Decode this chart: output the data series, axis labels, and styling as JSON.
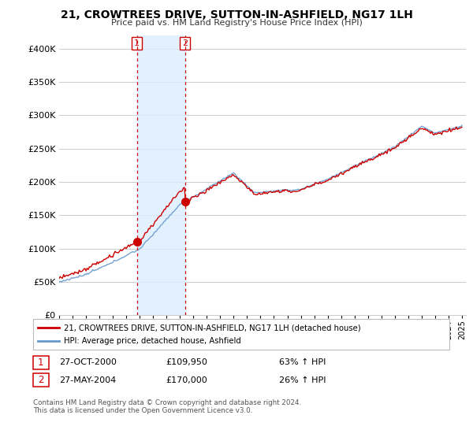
{
  "title": "21, CROWTREES DRIVE, SUTTON-IN-ASHFIELD, NG17 1LH",
  "subtitle": "Price paid vs. HM Land Registry's House Price Index (HPI)",
  "ylim": [
    0,
    420000
  ],
  "yticks": [
    0,
    50000,
    100000,
    150000,
    200000,
    250000,
    300000,
    350000,
    400000
  ],
  "legend_label_red": "21, CROWTREES DRIVE, SUTTON-IN-ASHFIELD, NG17 1LH (detached house)",
  "legend_label_blue": "HPI: Average price, detached house, Ashfield",
  "transaction1_date": "27-OCT-2000",
  "transaction1_price": "£109,950",
  "transaction1_hpi": "63% ↑ HPI",
  "transaction2_date": "27-MAY-2004",
  "transaction2_price": "£170,000",
  "transaction2_hpi": "26% ↑ HPI",
  "footer": "Contains HM Land Registry data © Crown copyright and database right 2024.\nThis data is licensed under the Open Government Licence v3.0.",
  "red_color": "#cc0000",
  "blue_color": "#6699cc",
  "shaded_color": "#ddeeff",
  "grid_color": "#cccccc",
  "background_color": "#ffffff",
  "transaction1_x": 2000.83,
  "transaction1_y": 109950,
  "transaction2_x": 2004.41,
  "transaction2_y": 170000,
  "xlim_start": 1995,
  "xlim_end": 2025.3
}
